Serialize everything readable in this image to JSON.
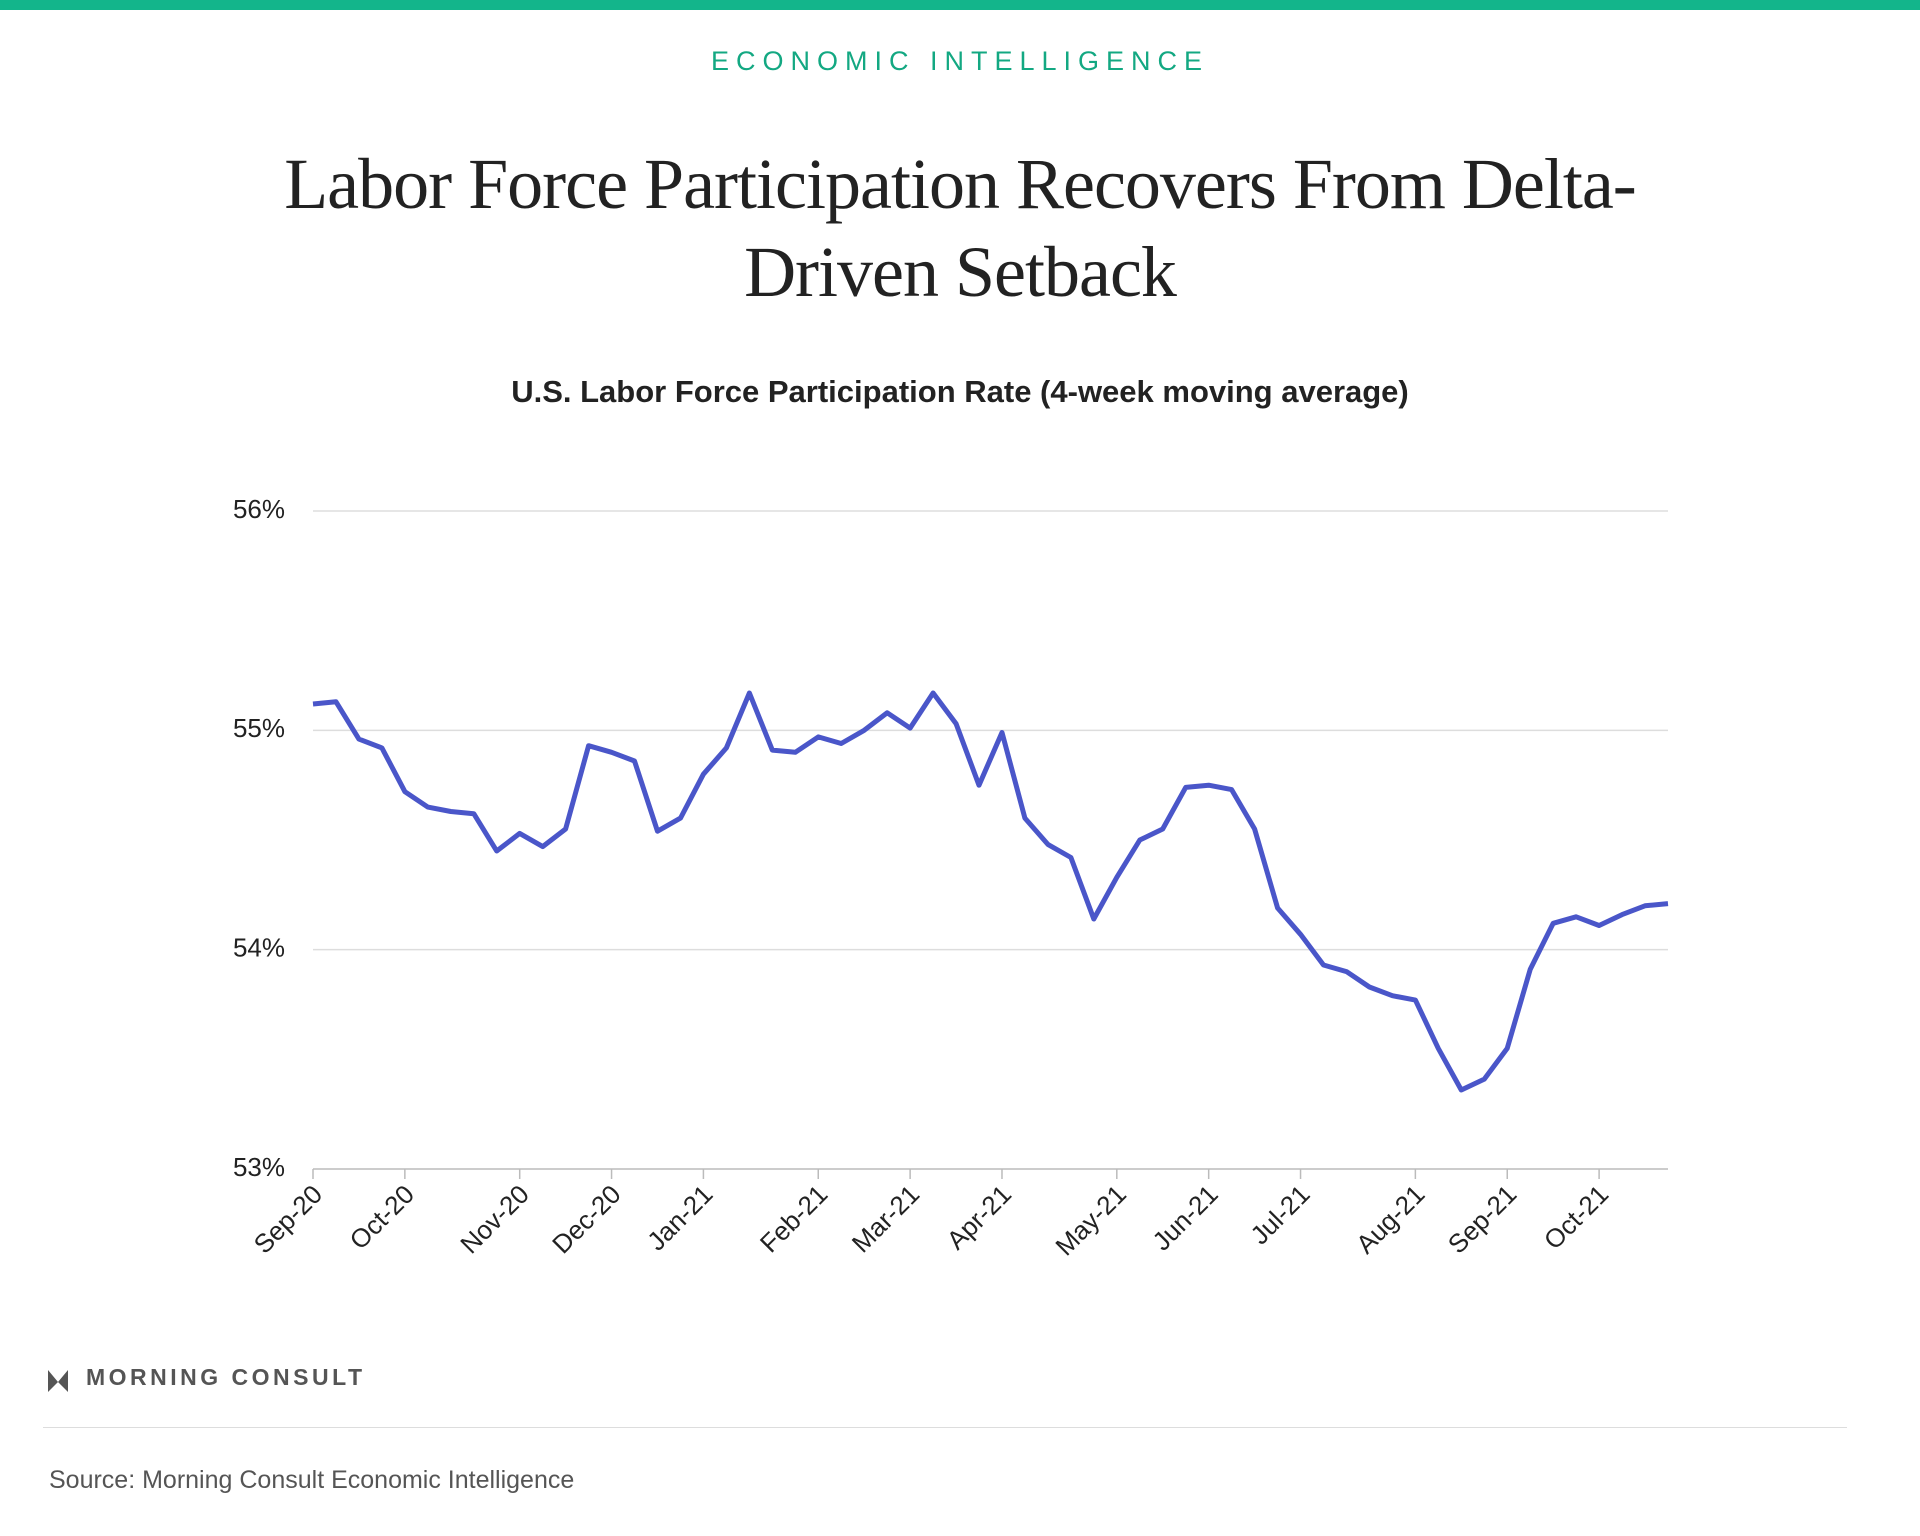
{
  "header": "ECONOMIC INTELLIGENCE",
  "logo": "MORNING CONSULT",
  "source": "Source: Morning Consult Economic Intelligence",
  "chart_data": {
    "type": "line",
    "title": "Labor Force Participation Recovers From Delta-Driven Setback",
    "subtitle": "U.S. Labor Force Participation Rate (4-week moving average)",
    "categories": [
      "Sep-20",
      null,
      null,
      null,
      "Oct-20",
      null,
      null,
      null,
      null,
      "Nov-20",
      null,
      null,
      null,
      "Dec-20",
      null,
      null,
      null,
      "Jan-21",
      null,
      null,
      null,
      null,
      "Feb-21",
      null,
      null,
      null,
      "Mar-21",
      null,
      null,
      null,
      "Apr-21",
      null,
      null,
      null,
      null,
      "May-21",
      null,
      null,
      null,
      "Jun-21",
      null,
      null,
      null,
      "Jul-21",
      null,
      null,
      null,
      null,
      "Aug-21",
      null,
      null,
      null,
      "Sep-21",
      null,
      null,
      null,
      "Oct-21",
      null,
      null,
      null
    ],
    "series": [
      {
        "name": "U.S. Labor Force Participation Rate",
        "color": "#4a56c9",
        "values": [
          55.12,
          55.13,
          54.96,
          54.92,
          54.72,
          54.65,
          54.63,
          54.62,
          54.45,
          54.53,
          54.47,
          54.55,
          54.93,
          54.9,
          54.86,
          54.54,
          54.6,
          54.8,
          54.92,
          55.17,
          54.91,
          54.9,
          54.97,
          54.94,
          55.0,
          55.08,
          55.01,
          55.17,
          55.03,
          54.75,
          54.99,
          54.6,
          54.48,
          54.42,
          54.14,
          54.33,
          54.5,
          54.55,
          54.74,
          54.75,
          54.73,
          54.55,
          54.19,
          54.07,
          53.93,
          53.9,
          53.83,
          53.79,
          53.77,
          53.55,
          53.36,
          53.41,
          53.55,
          53.91,
          54.12,
          54.15,
          54.11,
          54.16,
          54.2,
          54.21
        ]
      }
    ],
    "ylim": [
      53,
      56
    ],
    "yticks": [
      {
        "value": 53,
        "label": "53%"
      },
      {
        "value": 54,
        "label": "54%"
      },
      {
        "value": 55,
        "label": "55%"
      },
      {
        "value": 56,
        "label": "56%"
      }
    ],
    "grid": true
  }
}
